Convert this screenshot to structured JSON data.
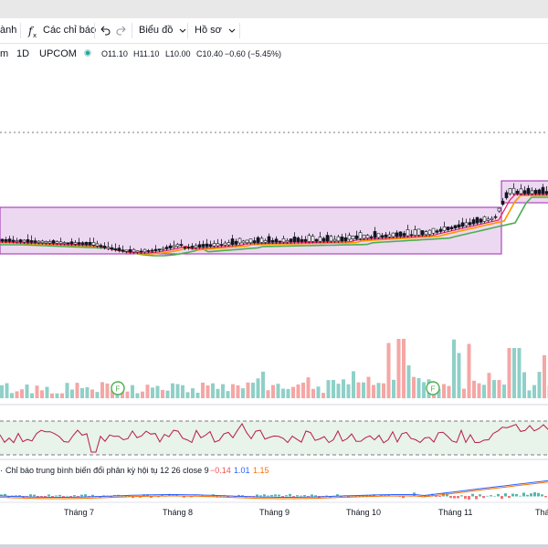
{
  "toolbar": {
    "timeframe_label": "ành",
    "indicators_label": "Các chỉ báo",
    "chart_type_label": "Biểu đồ",
    "profile_label": "Hồ sơ",
    "undo_icon": "undo-icon",
    "redo_icon": "redo-icon",
    "fx_icon": "fx-icon",
    "chevron_icon": "chevron-down-icon"
  },
  "symbol": {
    "name_fragment": "m",
    "interval": "1D",
    "exchange": "UPCOM",
    "open": "O11.10",
    "high": "H11.10",
    "low": "L10.00",
    "close": "C10.40",
    "change": "−0.60 (−5.45%)"
  },
  "macd": {
    "label": "Chỉ báo trung bình biến đổi phân kỳ hội tụ 12 26 close 9",
    "value_histogram": "−0.14",
    "value_macd": "1.01",
    "value_signal": "1.15"
  },
  "x_axis": {
    "labels": [
      "Tháng 7",
      "Tháng 8",
      "Tháng 9",
      "Tháng 10",
      "Tháng 11",
      "Thá"
    ]
  },
  "colors": {
    "up": "#26a69a",
    "down": "#ef5350",
    "range_box": "#ce93d8",
    "ma_fast": "#e91e63",
    "ma_mid": "#ff9800",
    "ma_slow": "#4caf50",
    "rsi_line": "#b71c47"
  },
  "flag_markers": [
    "F",
    "F"
  ]
}
